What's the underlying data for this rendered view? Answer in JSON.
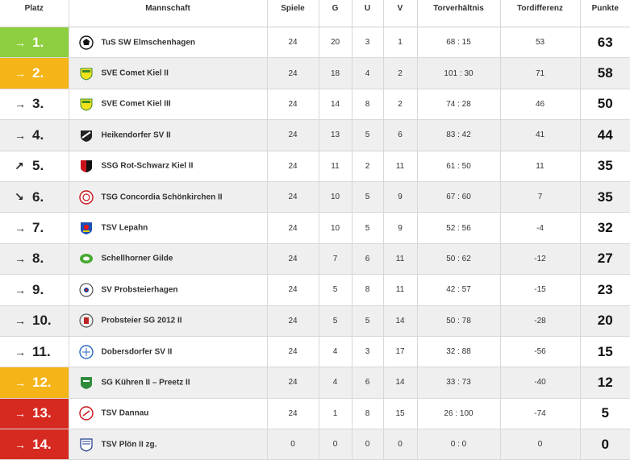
{
  "headers": {
    "platz": "Platz",
    "mannschaft": "Mannschaft",
    "spiele": "Spiele",
    "g": "G",
    "u": "U",
    "v": "V",
    "torverhaeltnis": "Torverhältnis",
    "tordifferenz": "Tordifferenz",
    "punkte": "Punkte"
  },
  "rows": [
    {
      "arrow": "→",
      "rank": "1.",
      "highlight": "green",
      "team": "TuS SW Elmschenhagen",
      "logo": "elmschenhagen-logo",
      "spiele": "24",
      "g": "20",
      "u": "3",
      "v": "1",
      "tore": "68 : 15",
      "diff": "53",
      "punkte": "63"
    },
    {
      "arrow": "→",
      "rank": "2.",
      "highlight": "yellow",
      "team": "SVE Comet Kiel II",
      "logo": "comet-logo",
      "spiele": "24",
      "g": "18",
      "u": "4",
      "v": "2",
      "tore": "101 : 30",
      "diff": "71",
      "punkte": "58"
    },
    {
      "arrow": "→",
      "rank": "3.",
      "highlight": "",
      "team": "SVE Comet Kiel III",
      "logo": "comet-logo",
      "spiele": "24",
      "g": "14",
      "u": "8",
      "v": "2",
      "tore": "74 : 28",
      "diff": "46",
      "punkte": "50"
    },
    {
      "arrow": "→",
      "rank": "4.",
      "highlight": "",
      "team": "Heikendorfer SV II",
      "logo": "heikendorf-logo",
      "spiele": "24",
      "g": "13",
      "u": "5",
      "v": "6",
      "tore": "83 : 42",
      "diff": "41",
      "punkte": "44"
    },
    {
      "arrow": "↗",
      "rank": "5.",
      "highlight": "",
      "team": "SSG Rot-Schwarz Kiel II",
      "logo": "rotschwarz-logo",
      "spiele": "24",
      "g": "11",
      "u": "2",
      "v": "11",
      "tore": "61 : 50",
      "diff": "11",
      "punkte": "35"
    },
    {
      "arrow": "↘",
      "rank": "6.",
      "highlight": "",
      "team": "TSG Concordia Schönkirchen II",
      "logo": "concordia-logo",
      "spiele": "24",
      "g": "10",
      "u": "5",
      "v": "9",
      "tore": "67 : 60",
      "diff": "7",
      "punkte": "35"
    },
    {
      "arrow": "→",
      "rank": "7.",
      "highlight": "",
      "team": "TSV Lepahn",
      "logo": "lepahn-logo",
      "spiele": "24",
      "g": "10",
      "u": "5",
      "v": "9",
      "tore": "52 : 56",
      "diff": "-4",
      "punkte": "32"
    },
    {
      "arrow": "→",
      "rank": "8.",
      "highlight": "",
      "team": "Schellhorner Gilde",
      "logo": "schellhorn-logo",
      "spiele": "24",
      "g": "7",
      "u": "6",
      "v": "11",
      "tore": "50 : 62",
      "diff": "-12",
      "punkte": "27"
    },
    {
      "arrow": "→",
      "rank": "9.",
      "highlight": "",
      "team": "SV Probsteierhagen",
      "logo": "probsteierhagen-logo",
      "spiele": "24",
      "g": "5",
      "u": "8",
      "v": "11",
      "tore": "42 : 57",
      "diff": "-15",
      "punkte": "23"
    },
    {
      "arrow": "→",
      "rank": "10.",
      "highlight": "",
      "team": "Probsteier SG 2012 II",
      "logo": "probsteier-sg-logo",
      "spiele": "24",
      "g": "5",
      "u": "5",
      "v": "14",
      "tore": "50 : 78",
      "diff": "-28",
      "punkte": "20"
    },
    {
      "arrow": "→",
      "rank": "11.",
      "highlight": "",
      "team": "Dobersdorfer SV II",
      "logo": "dobersdorf-logo",
      "spiele": "24",
      "g": "4",
      "u": "3",
      "v": "17",
      "tore": "32 : 88",
      "diff": "-56",
      "punkte": "15"
    },
    {
      "arrow": "→",
      "rank": "12.",
      "highlight": "yellow",
      "team": "SG Kühren II – Preetz II",
      "logo": "kuehren-logo",
      "spiele": "24",
      "g": "4",
      "u": "6",
      "v": "14",
      "tore": "33 : 73",
      "diff": "-40",
      "punkte": "12"
    },
    {
      "arrow": "→",
      "rank": "13.",
      "highlight": "red",
      "team": "TSV Dannau",
      "logo": "dannau-logo",
      "spiele": "24",
      "g": "1",
      "u": "8",
      "v": "15",
      "tore": "26 : 100",
      "diff": "-74",
      "punkte": "5"
    },
    {
      "arrow": "→",
      "rank": "14.",
      "highlight": "red",
      "team": "TSV Plön II zg.",
      "logo": "ploen-logo",
      "spiele": "0",
      "g": "0",
      "u": "0",
      "v": "0",
      "tore": "0 : 0",
      "diff": "0",
      "punkte": "0"
    }
  ],
  "colors": {
    "promotion": "#8dcf3f",
    "playoff": "#f5b417",
    "relegation": "#d62a21",
    "row_alt": "#efefef"
  }
}
